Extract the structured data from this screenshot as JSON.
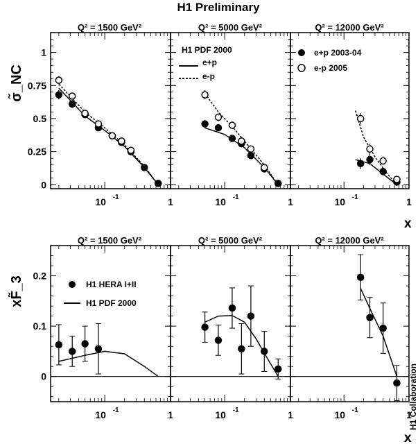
{
  "title": "H1 Preliminary",
  "side_label": "H1 Collaboration",
  "top_row": {
    "ylabel": "σ̃_NC",
    "xlabel": "x",
    "ylim": [
      -0.03,
      1.15
    ],
    "yticks": [
      "0",
      "0.25",
      "0.5",
      "0.75",
      "1"
    ],
    "xticks_labels": [
      "10",
      "1"
    ],
    "legend_model": {
      "title": "H1 PDF 2000",
      "items": [
        {
          "label": "e+p",
          "style": "solid"
        },
        {
          "label": "e-p",
          "style": "dashed"
        }
      ]
    },
    "legend_data": {
      "items": [
        {
          "label": "e+p 2003-04",
          "marker": "filled-circle"
        },
        {
          "label": "e-p 2005",
          "marker": "open-circle"
        }
      ]
    }
  },
  "bottom_row": {
    "ylabel": "xF̃_3",
    "xlabel": "x",
    "ylim": [
      -0.05,
      0.26
    ],
    "yticks": [
      "0",
      "0.1",
      "0.2"
    ],
    "legend": {
      "items": [
        {
          "label": "H1 HERA I+II",
          "marker": "filled-circle"
        },
        {
          "label": "H1 PDF 2000",
          "style": "solid"
        }
      ]
    }
  },
  "chart_data": [
    {
      "type": "scatter",
      "panel": "top-1",
      "title": "Q² = 1500 GeV²",
      "xscale": "log",
      "xlim": [
        0.015,
        1
      ],
      "series": [
        {
          "name": "e+p 2003-04",
          "marker": "filled",
          "x": [
            0.02,
            0.032,
            0.05,
            0.08,
            0.13,
            0.18,
            0.25,
            0.4,
            0.65
          ],
          "y": [
            0.68,
            0.61,
            0.53,
            0.43,
            0.37,
            0.32,
            0.25,
            0.13,
            0.01
          ],
          "err": [
            0.035,
            0.03,
            0.02,
            0.02,
            0.02,
            0.02,
            0.02,
            0.015,
            0.01
          ]
        },
        {
          "name": "e-p 2005",
          "marker": "open",
          "x": [
            0.02,
            0.032,
            0.05,
            0.08,
            0.13,
            0.18,
            0.25
          ],
          "y": [
            0.79,
            0.67,
            0.54,
            0.46,
            0.37,
            0.33,
            0.26
          ],
          "err": [
            0.03,
            0.025,
            0.02,
            0.02,
            0.02,
            0.02,
            0.02
          ]
        }
      ],
      "curves": [
        {
          "name": "e+p",
          "style": "solid",
          "x": [
            0.02,
            0.05,
            0.1,
            0.2,
            0.4,
            0.65
          ],
          "y": [
            0.73,
            0.52,
            0.41,
            0.29,
            0.13,
            0.0
          ]
        },
        {
          "name": "e-p",
          "style": "dashed",
          "x": [
            0.02,
            0.05,
            0.1,
            0.2,
            0.4,
            0.65
          ],
          "y": [
            0.76,
            0.55,
            0.43,
            0.3,
            0.14,
            0.0
          ]
        }
      ]
    },
    {
      "type": "scatter",
      "panel": "top-2",
      "title": "Q² = 5000 GeV²",
      "xscale": "log",
      "xlim": [
        0.015,
        1
      ],
      "series": [
        {
          "name": "e+p 2003-04",
          "marker": "filled",
          "x": [
            0.05,
            0.08,
            0.13,
            0.18,
            0.25,
            0.4,
            0.65
          ],
          "y": [
            0.46,
            0.43,
            0.35,
            0.31,
            0.22,
            0.12,
            0.01
          ],
          "err": [
            0.03,
            0.025,
            0.025,
            0.02,
            0.02,
            0.015,
            0.01
          ]
        },
        {
          "name": "e-p 2005",
          "marker": "open",
          "x": [
            0.05,
            0.08,
            0.13,
            0.18,
            0.25,
            0.4
          ],
          "y": [
            0.68,
            0.51,
            0.45,
            0.33,
            0.27,
            0.13
          ],
          "err": [
            0.035,
            0.03,
            0.025,
            0.025,
            0.02,
            0.015
          ]
        }
      ],
      "curves": [
        {
          "name": "e+p",
          "style": "solid",
          "x": [
            0.05,
            0.1,
            0.2,
            0.4,
            0.65
          ],
          "y": [
            0.43,
            0.38,
            0.28,
            0.13,
            0.0
          ]
        },
        {
          "name": "e-p",
          "style": "dashed",
          "x": [
            0.05,
            0.08,
            0.13,
            0.2,
            0.4,
            0.65
          ],
          "y": [
            0.69,
            0.55,
            0.44,
            0.33,
            0.15,
            0.0
          ]
        }
      ]
    },
    {
      "type": "scatter",
      "panel": "top-3",
      "title": "Q² = 12000 GeV²",
      "xscale": "log",
      "xlim": [
        0.015,
        1
      ],
      "series": [
        {
          "name": "e+p 2003-04",
          "marker": "filled",
          "x": [
            0.18,
            0.25,
            0.4,
            0.65
          ],
          "y": [
            0.16,
            0.19,
            0.1,
            0.02
          ],
          "err": [
            0.04,
            0.04,
            0.03,
            0.015
          ]
        },
        {
          "name": "e-p 2005",
          "marker": "open",
          "x": [
            0.25,
            0.4,
            0.65
          ],
          "y": [
            0.27,
            0.18,
            0.04
          ],
          "err": [
            0.04,
            0.03,
            0.015
          ]
        },
        {
          "name": "e-p 2005",
          "marker": "open-cross",
          "x": [
            0.18
          ],
          "y": [
            0.5
          ],
          "err": [
            0.04
          ]
        }
      ],
      "curves": [
        {
          "name": "e+p",
          "style": "solid",
          "x": [
            0.15,
            0.25,
            0.4,
            0.65
          ],
          "y": [
            0.19,
            0.16,
            0.08,
            0.0
          ]
        },
        {
          "name": "e-p",
          "style": "dashed",
          "x": [
            0.15,
            0.2,
            0.3,
            0.45,
            0.65
          ],
          "y": [
            0.56,
            0.36,
            0.21,
            0.09,
            0.0
          ]
        }
      ]
    },
    {
      "type": "scatter",
      "panel": "bottom-1",
      "title": "Q² = 1500 GeV²",
      "xscale": "log",
      "xlim": [
        0.015,
        1
      ],
      "series": [
        {
          "name": "H1 HERA I+II",
          "marker": "filled",
          "x": [
            0.02,
            0.032,
            0.05,
            0.08
          ],
          "y": [
            0.063,
            0.05,
            0.065,
            0.055
          ],
          "err": [
            0.04,
            0.03,
            0.035,
            0.05
          ]
        }
      ],
      "curves": [
        {
          "name": "H1 PDF 2000",
          "style": "solid",
          "x": [
            0.02,
            0.05,
            0.1,
            0.2,
            0.4,
            0.65
          ],
          "y": [
            0.03,
            0.042,
            0.05,
            0.045,
            0.02,
            0.0
          ]
        }
      ]
    },
    {
      "type": "scatter",
      "panel": "bottom-2",
      "title": "Q² = 5000 GeV²",
      "xscale": "log",
      "xlim": [
        0.015,
        1
      ],
      "series": [
        {
          "name": "H1 HERA I+II",
          "marker": "filled",
          "x": [
            0.05,
            0.08,
            0.13,
            0.18,
            0.25,
            0.4,
            0.65
          ],
          "y": [
            0.098,
            0.072,
            0.136,
            0.055,
            0.12,
            0.05,
            0.015
          ],
          "err": [
            0.03,
            0.03,
            0.04,
            0.05,
            0.06,
            0.04,
            0.02
          ]
        }
      ],
      "curves": [
        {
          "name": "H1 PDF 2000",
          "style": "solid",
          "x": [
            0.05,
            0.08,
            0.13,
            0.2,
            0.3,
            0.45,
            0.65
          ],
          "y": [
            0.108,
            0.12,
            0.121,
            0.108,
            0.075,
            0.035,
            0.0
          ]
        }
      ]
    },
    {
      "type": "scatter",
      "panel": "bottom-3",
      "title": "Q² = 12000 GeV²",
      "xscale": "log",
      "xlim": [
        0.015,
        1
      ],
      "series": [
        {
          "name": "H1 HERA I+II",
          "marker": "filled",
          "x": [
            0.18,
            0.25,
            0.4,
            0.65
          ],
          "y": [
            0.197,
            0.117,
            0.096,
            -0.013
          ],
          "err": [
            0.045,
            0.04,
            0.05,
            0.035
          ]
        }
      ],
      "curves": [
        {
          "name": "H1 PDF 2000",
          "style": "solid",
          "x": [
            0.18,
            0.25,
            0.4,
            0.65
          ],
          "y": [
            0.175,
            0.135,
            0.08,
            0.0
          ]
        }
      ]
    }
  ]
}
